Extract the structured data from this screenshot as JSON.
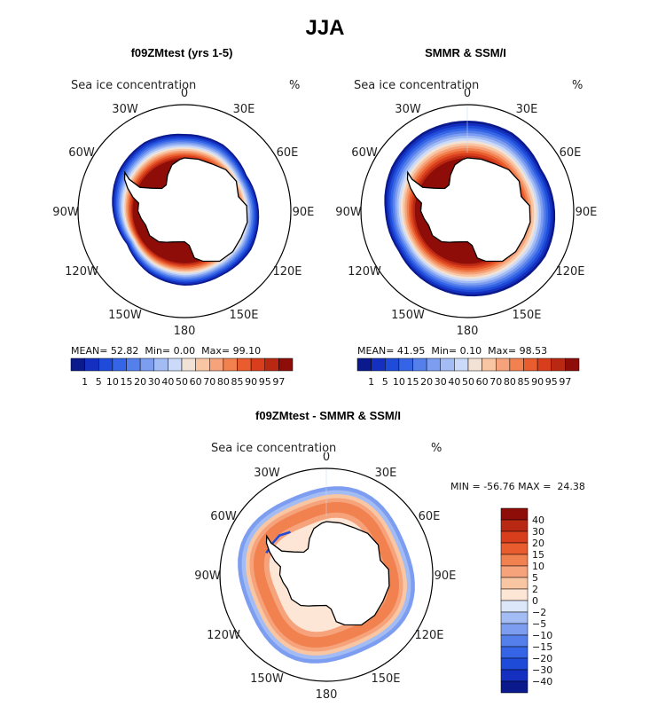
{
  "title": "JJA",
  "colors": {
    "coast": "#000000",
    "continent": "#ffffff",
    "ocean": "#ffffff",
    "ice_scale": [
      "#0a1a8c",
      "#1530c0",
      "#1e4bd8",
      "#3565e6",
      "#5580ec",
      "#7c9df0",
      "#a4bcf4",
      "#cbdaf8",
      "#f2e2d6",
      "#f9c6a4",
      "#f6a37c",
      "#f1814f",
      "#e85c2e",
      "#d83d1c",
      "#b92813",
      "#8e0d09"
    ],
    "diff_scale": [
      "#0a1a8c",
      "#1530c0",
      "#1e4bd8",
      "#3565e6",
      "#5580ec",
      "#7c9df0",
      "#a4bcf4",
      "#dce8fa",
      "#fde6d6",
      "#f9c6a4",
      "#f6a37c",
      "#f1814f",
      "#e85c2e",
      "#d83d1c",
      "#b92813",
      "#8e0d09"
    ]
  },
  "chart_data": [
    {
      "type": "heatmap",
      "projection": "south-polar-stereographic",
      "title": "f09ZMtest (yrs 1-5)",
      "variable": "Sea ice concentration",
      "units": "%",
      "longitude_labels": [
        "0",
        "30E",
        "60E",
        "90E",
        "120E",
        "150E",
        "180",
        "150W",
        "120W",
        "90W",
        "60W",
        "30W"
      ],
      "stats": {
        "mean": "52.82",
        "min": "0.00",
        "max": "99.10"
      },
      "colorbar_levels": [
        "1",
        "5",
        "10",
        "15",
        "20",
        "30",
        "40",
        "50",
        "60",
        "70",
        "80",
        "85",
        "90",
        "95",
        "97"
      ],
      "ice_edge_latitude": -62,
      "ice_edge_by_longitude": [
        {
          "lon": 0,
          "lat": -61
        },
        {
          "lon": 30,
          "lat": -61
        },
        {
          "lon": 60,
          "lat": -63
        },
        {
          "lon": 90,
          "lat": -62
        },
        {
          "lon": 120,
          "lat": -61
        },
        {
          "lon": 150,
          "lat": -62
        },
        {
          "lon": 180,
          "lat": -62
        },
        {
          "lon": -150,
          "lat": -63
        },
        {
          "lon": -120,
          "lat": -65
        },
        {
          "lon": -90,
          "lat": -63
        },
        {
          "lon": -60,
          "lat": -61
        },
        {
          "lon": -30,
          "lat": -60
        }
      ]
    },
    {
      "type": "heatmap",
      "projection": "south-polar-stereographic",
      "title": "SMMR & SSM/I",
      "variable": "Sea ice concentration",
      "units": "%",
      "longitude_labels": [
        "0",
        "30E",
        "60E",
        "90E",
        "120E",
        "150E",
        "180",
        "150W",
        "120W",
        "90W",
        "60W",
        "30W"
      ],
      "stats": {
        "mean": "41.95",
        "min": "0.10",
        "max": "98.53"
      },
      "colorbar_levels": [
        "1",
        "5",
        "10",
        "15",
        "20",
        "30",
        "40",
        "50",
        "60",
        "70",
        "80",
        "85",
        "90",
        "95",
        "97"
      ],
      "ice_edge_latitude": -58,
      "ice_edge_by_longitude": [
        {
          "lon": 0,
          "lat": -56
        },
        {
          "lon": 30,
          "lat": -56
        },
        {
          "lon": 60,
          "lat": -58
        },
        {
          "lon": 90,
          "lat": -57
        },
        {
          "lon": 120,
          "lat": -56
        },
        {
          "lon": 150,
          "lat": -57
        },
        {
          "lon": 180,
          "lat": -58
        },
        {
          "lon": -150,
          "lat": -59
        },
        {
          "lon": -120,
          "lat": -60
        },
        {
          "lon": -90,
          "lat": -59
        },
        {
          "lon": -60,
          "lat": -57
        },
        {
          "lon": -30,
          "lat": -56
        }
      ]
    },
    {
      "type": "heatmap",
      "projection": "south-polar-stereographic",
      "title": "f09ZMtest - SMMR & SSM/I",
      "variable": "Sea ice concentration",
      "units": "%",
      "longitude_labels": [
        "0",
        "30E",
        "60E",
        "90E",
        "120E",
        "150E",
        "180",
        "150W",
        "120W",
        "90W",
        "60W",
        "30W"
      ],
      "stats": {
        "min": "-56.76",
        "max": "24.38"
      },
      "colorbar_levels": [
        "40",
        "30",
        "20",
        "15",
        "10",
        "5",
        "2",
        "0",
        "−2",
        "−5",
        "−10",
        "−15",
        "−20",
        "−30",
        "−40"
      ],
      "colorbar_orientation": "vertical"
    }
  ]
}
